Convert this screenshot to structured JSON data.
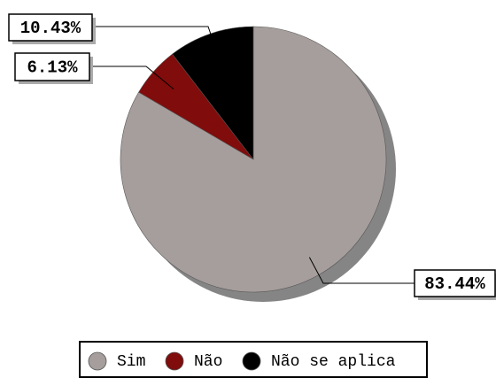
{
  "chart_data": {
    "type": "pie",
    "categories": [
      "Sim",
      "Não",
      "Não se aplica"
    ],
    "values": [
      83.44,
      6.13,
      10.43
    ],
    "value_labels": [
      "83.44%",
      "6.13%",
      "10.43%"
    ],
    "colors": [
      "#a69e9c",
      "#800c0c",
      "#000000"
    ]
  }
}
